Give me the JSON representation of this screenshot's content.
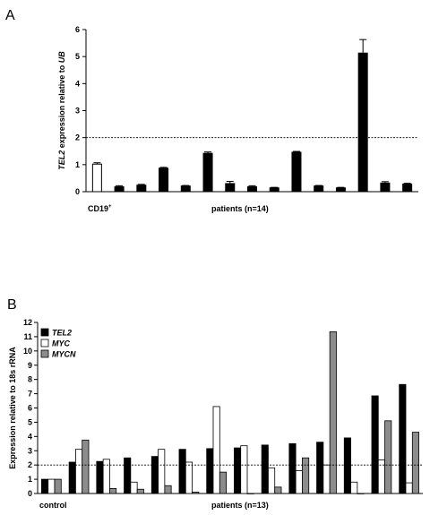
{
  "chart_data": [
    {
      "panel": "A",
      "type": "bar",
      "ylabel_italic_prefix": "TEL2",
      "ylabel_mid": " expression  relative to ",
      "ylabel_italic_suffix": "UB",
      "ylim": [
        0,
        6
      ],
      "yticks": [
        "0",
        "1",
        "2",
        "3",
        "4",
        "5",
        "6"
      ],
      "reference_line": 2,
      "x_labels": {
        "control_prefix": "CD19",
        "control_sup": "+",
        "patients": "patients (n=14)"
      },
      "bars": [
        {
          "value": 1.02,
          "error": 0.05,
          "fill": "#ffffff"
        },
        {
          "value": 0.18,
          "error": 0.04,
          "fill": "#000000"
        },
        {
          "value": 0.24,
          "error": 0.03,
          "fill": "#000000"
        },
        {
          "value": 0.87,
          "error": 0.03,
          "fill": "#000000"
        },
        {
          "value": 0.21,
          "error": 0.02,
          "fill": "#000000"
        },
        {
          "value": 1.42,
          "error": 0.05,
          "fill": "#000000"
        },
        {
          "value": 0.3,
          "error": 0.08,
          "fill": "#000000"
        },
        {
          "value": 0.18,
          "error": 0.04,
          "fill": "#000000"
        },
        {
          "value": 0.14,
          "error": 0.02,
          "fill": "#000000"
        },
        {
          "value": 1.46,
          "error": 0.03,
          "fill": "#000000"
        },
        {
          "value": 0.21,
          "error": 0.02,
          "fill": "#000000"
        },
        {
          "value": 0.14,
          "error": 0.02,
          "fill": "#000000"
        },
        {
          "value": 5.13,
          "error": 0.5,
          "fill": "#000000"
        },
        {
          "value": 0.32,
          "error": 0.05,
          "fill": "#000000"
        },
        {
          "value": 0.28,
          "error": 0.03,
          "fill": "#000000"
        }
      ]
    },
    {
      "panel": "B",
      "type": "bar",
      "ylabel": "Expression relative to 18s rRNA",
      "ylim": [
        0,
        12
      ],
      "yticks": [
        "0",
        "1",
        "2",
        "3",
        "4",
        "5",
        "6",
        "7",
        "8",
        "9",
        "10",
        "11",
        "12"
      ],
      "reference_line": 2,
      "x_labels": {
        "control": "control",
        "patients": "patients (n=13)"
      },
      "series": [
        {
          "name": "TEL2",
          "color": "#000000",
          "values": [
            1.0,
            2.2,
            2.25,
            2.5,
            2.6,
            3.1,
            3.15,
            3.2,
            3.4,
            3.5,
            3.6,
            3.9,
            6.85,
            7.65
          ]
        },
        {
          "name": "MYC",
          "color": "#ffffff",
          "values": [
            1.0,
            3.1,
            2.4,
            0.8,
            3.1,
            2.2,
            6.1,
            3.35,
            1.8,
            1.6,
            2.0,
            0.8,
            2.35,
            0.75
          ]
        },
        {
          "name": "MYCN",
          "color": "#8c8c8c",
          "values": [
            1.0,
            3.75,
            0.35,
            0.3,
            0.55,
            0.1,
            1.5,
            0.0,
            0.45,
            2.5,
            11.35,
            0.0,
            5.1,
            4.3
          ]
        }
      ]
    }
  ]
}
